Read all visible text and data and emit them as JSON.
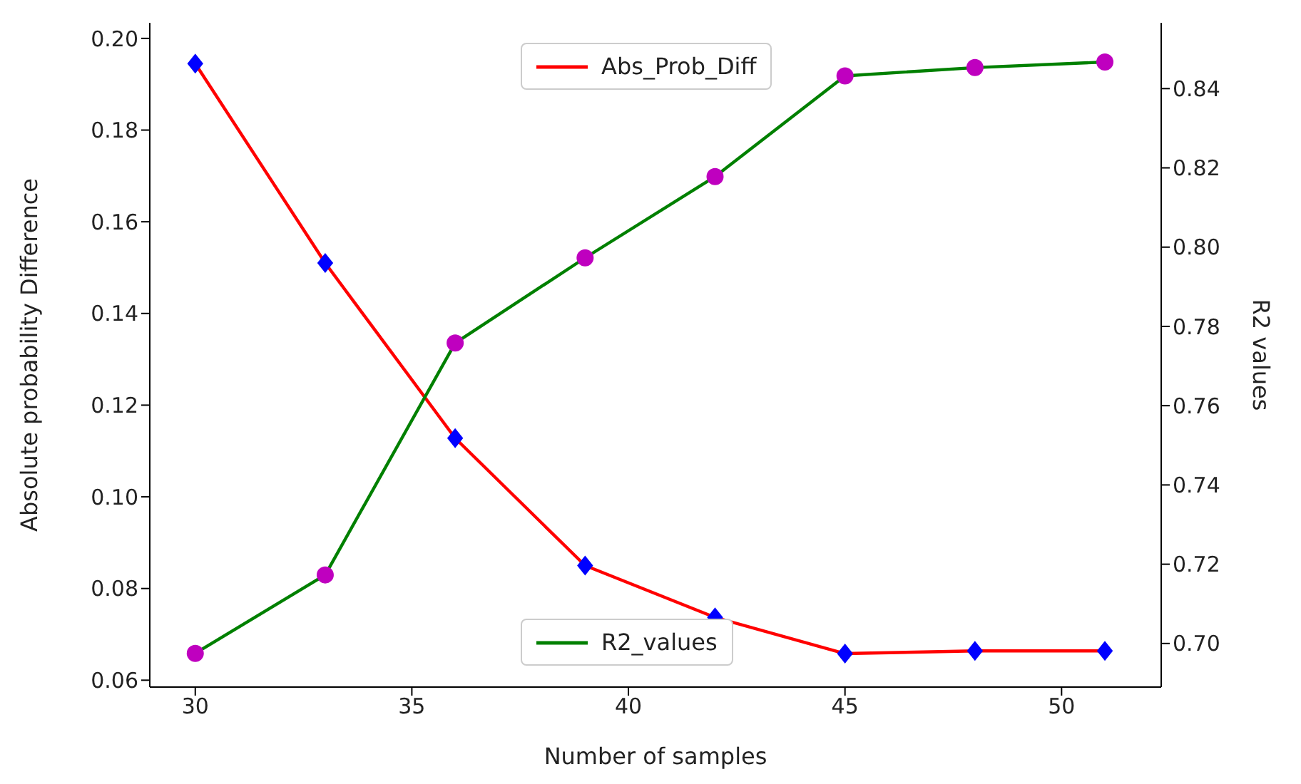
{
  "chart_data": {
    "type": "line",
    "xlabel": "Number of samples",
    "ylabel": "Absolute probability Difference",
    "y2label": "R2 values",
    "x": [
      30,
      33,
      36,
      39,
      42,
      45,
      48,
      51
    ],
    "series": [
      {
        "name": "Abs_Prob_Diff",
        "color": "#ff0000",
        "marker": "diamond",
        "colors": [
          "#0000ff",
          "#0000ff",
          "#0000ff",
          "#0000ff",
          "#0000ff",
          "#0000ff",
          "#0000ff",
          "#0000ff"
        ],
        "values": [
          0.1945,
          0.151,
          0.1128,
          0.085,
          0.0737,
          0.0658,
          0.0664,
          0.0664
        ]
      },
      {
        "name": "R2_values",
        "color": "#008000",
        "marker": "circle",
        "axis": "y2",
        "colors": [
          "#bf00bf",
          "#bf00bf",
          "#bf00bf",
          "#bf00bf",
          "#bf00bf",
          "#bf00bf",
          "#bf00bf",
          "#bf00bf"
        ],
        "values": [
          0.6975,
          0.7173,
          0.7758,
          0.7973,
          0.8178,
          0.8432,
          0.8453,
          0.8467
        ]
      }
    ],
    "xlim": [
      28.95,
      52.3
    ],
    "xticks": [
      30,
      35,
      40,
      45,
      50
    ],
    "ylim": [
      0.0585,
      0.2034
    ],
    "yticks": [
      {
        "value": 0.06,
        "label": "0.06"
      },
      {
        "value": 0.08,
        "label": "0.08"
      },
      {
        "value": 0.1,
        "label": "0.10"
      },
      {
        "value": 0.12,
        "label": "0.12"
      },
      {
        "value": 0.14,
        "label": "0.14"
      },
      {
        "value": 0.16,
        "label": "0.16"
      },
      {
        "value": 0.18,
        "label": "0.18"
      },
      {
        "value": 0.2,
        "label": "0.20"
      }
    ],
    "y2lim": [
      0.689,
      0.8566
    ],
    "y2ticks": [
      {
        "value": 0.7,
        "label": "0.70"
      },
      {
        "value": 0.72,
        "label": "0.72"
      },
      {
        "value": 0.74,
        "label": "0.74"
      },
      {
        "value": 0.76,
        "label": "0.76"
      },
      {
        "value": 0.78,
        "label": "0.78"
      },
      {
        "value": 0.8,
        "label": "0.80"
      },
      {
        "value": 0.82,
        "label": "0.82"
      },
      {
        "value": 0.84,
        "label": "0.84"
      }
    ],
    "grid": false,
    "legend": "center"
  }
}
